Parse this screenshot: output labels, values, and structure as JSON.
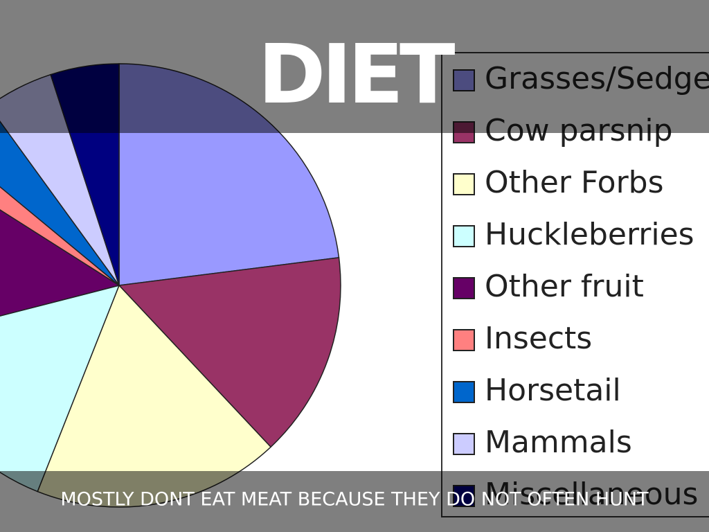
{
  "title": "DIET",
  "caption": "MOSTLY DONT EAT MEAT BECAUSE THEY DO NOT OFTEN HUNT",
  "chart_data": {
    "type": "pie",
    "categories": [
      "Grasses/Sedges",
      "Cow parsnip",
      "Other Forbs",
      "Huckleberries",
      "Other fruit",
      "Insects",
      "Horsetail",
      "Mammals",
      "Miscellaneous"
    ],
    "values": [
      23,
      15,
      18,
      15,
      13,
      2,
      4,
      5,
      5
    ],
    "colors": [
      "#9999ff",
      "#993366",
      "#ffffcc",
      "#ccffff",
      "#660066",
      "#ff8080",
      "#0066cc",
      "#ccccff",
      "#000080"
    ],
    "legend": "right"
  }
}
